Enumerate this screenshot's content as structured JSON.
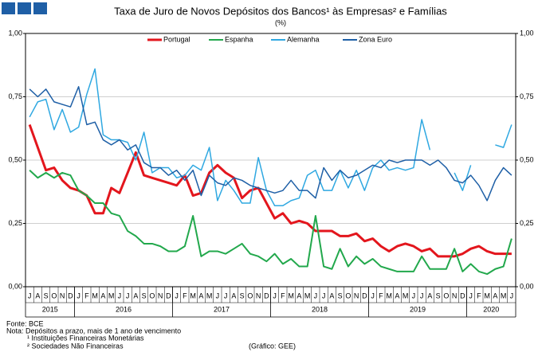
{
  "chart_data": {
    "type": "line",
    "title": "Taxa de Juro de Novos Depósitos dos Bancos¹ às Empresas² e Famílias",
    "subtitle": "(%)",
    "categories": [
      "J",
      "A",
      "S",
      "O",
      "N",
      "D",
      "J",
      "F",
      "M",
      "A",
      "M",
      "J",
      "J",
      "A",
      "S",
      "O",
      "N",
      "D",
      "J",
      "F",
      "M",
      "A",
      "M",
      "J",
      "J",
      "A",
      "S",
      "O",
      "N",
      "D",
      "J",
      "F",
      "M",
      "A",
      "M",
      "J",
      "J",
      "A",
      "S",
      "O",
      "N",
      "D",
      "J",
      "F",
      "M",
      "A",
      "M",
      "J",
      "J",
      "A",
      "S",
      "O",
      "N",
      "D",
      "J",
      "F",
      "M",
      "A",
      "M",
      "J"
    ],
    "year_labels": [
      "2015",
      "2016",
      "2017",
      "2018",
      "2019",
      "2020"
    ],
    "ylim": [
      0,
      1
    ],
    "yticks": [
      {
        "value": 0,
        "label": "0,00"
      },
      {
        "value": 0.25,
        "label": "0,25"
      },
      {
        "value": 0.5,
        "label": "0,50"
      },
      {
        "value": 0.75,
        "label": "0,75"
      },
      {
        "value": 1,
        "label": "1,00"
      }
    ],
    "y2lim": [
      0,
      1
    ],
    "y2ticks": [
      {
        "value": 0,
        "label": "0,00"
      },
      {
        "value": 0.25,
        "label": "0,25"
      },
      {
        "value": 0.5,
        "label": "0,50"
      },
      {
        "value": 0.75,
        "label": "0,75"
      },
      {
        "value": 1,
        "label": "1,00"
      }
    ],
    "grid": true,
    "legend": "top",
    "series": [
      {
        "name": "Portugal",
        "color": "#e3161d",
        "width": 3,
        "values": [
          0.64,
          0.55,
          0.46,
          0.47,
          0.42,
          0.39,
          0.38,
          0.36,
          0.29,
          0.29,
          0.39,
          0.37,
          0.45,
          0.53,
          0.44,
          0.43,
          0.42,
          0.41,
          0.4,
          0.44,
          0.36,
          0.37,
          0.45,
          0.48,
          0.45,
          0.43,
          0.35,
          0.38,
          0.39,
          0.33,
          0.27,
          0.29,
          0.25,
          0.26,
          0.25,
          0.22,
          0.22,
          0.22,
          0.2,
          0.2,
          0.21,
          0.18,
          0.19,
          0.16,
          0.14,
          0.16,
          0.17,
          0.16,
          0.14,
          0.15,
          0.12,
          0.12,
          0.12,
          0.13,
          0.15,
          0.16,
          0.14,
          0.13,
          0.13,
          0.13
        ]
      },
      {
        "name": "Espanha",
        "color": "#22a84c",
        "width": 2,
        "values": [
          0.46,
          0.43,
          0.45,
          0.43,
          0.45,
          0.44,
          0.38,
          0.36,
          0.33,
          0.33,
          0.29,
          0.28,
          0.22,
          0.2,
          0.17,
          0.17,
          0.16,
          0.14,
          0.14,
          0.16,
          0.28,
          0.12,
          0.14,
          0.14,
          0.13,
          0.15,
          0.17,
          0.13,
          0.12,
          0.1,
          0.13,
          0.09,
          0.11,
          0.08,
          0.08,
          0.28,
          0.08,
          0.07,
          0.15,
          0.08,
          0.12,
          0.09,
          0.11,
          0.08,
          0.07,
          0.06,
          0.06,
          0.06,
          0.12,
          0.07,
          0.07,
          0.07,
          0.15,
          0.06,
          0.09,
          0.06,
          0.05,
          0.07,
          0.08,
          0.19
        ]
      },
      {
        "name": "Alemanha",
        "color": "#2fa8e1",
        "width": 1.5,
        "values": [
          0.67,
          0.73,
          0.74,
          0.62,
          0.7,
          0.61,
          0.63,
          0.76,
          0.86,
          0.6,
          0.58,
          0.58,
          0.57,
          0.5,
          0.61,
          0.45,
          0.47,
          0.47,
          0.43,
          0.44,
          0.48,
          0.46,
          0.55,
          0.34,
          0.42,
          0.38,
          0.33,
          0.33,
          0.51,
          0.38,
          0.32,
          0.32,
          0.34,
          0.35,
          0.44,
          0.46,
          0.38,
          0.38,
          0.46,
          0.39,
          0.46,
          0.38,
          0.47,
          0.5,
          0.46,
          0.47,
          0.46,
          0.47,
          0.66,
          0.54,
          null,
          null,
          0.45,
          0.38,
          0.48,
          null,
          null,
          0.56,
          0.55,
          0.64
        ]
      },
      {
        "name": "Zona Euro",
        "color": "#1e5fa6",
        "width": 1.5,
        "values": [
          0.78,
          0.75,
          0.78,
          0.73,
          0.72,
          0.71,
          0.79,
          0.64,
          0.65,
          0.58,
          0.56,
          0.58,
          0.54,
          0.56,
          0.49,
          0.47,
          0.47,
          0.44,
          0.46,
          0.42,
          0.46,
          0.36,
          0.44,
          0.41,
          0.4,
          0.43,
          0.42,
          0.4,
          0.39,
          0.38,
          0.37,
          0.38,
          0.42,
          0.38,
          0.38,
          0.35,
          0.47,
          0.42,
          0.46,
          0.43,
          0.44,
          0.46,
          0.48,
          0.47,
          0.5,
          0.49,
          0.5,
          0.5,
          0.5,
          0.48,
          0.5,
          0.47,
          0.42,
          0.41,
          0.44,
          0.4,
          0.34,
          0.42,
          0.47,
          0.44
        ]
      }
    ]
  },
  "footer": {
    "source": "Fonte: BCE",
    "note": "Nota: Depósitos a prazo, mais de 1 ano de vencimento",
    "note1": "¹ Instituições Financeiras Monetárias",
    "note2": "² Sociedades Não Financeiras",
    "credit": "(Gráfico: GEE)"
  }
}
